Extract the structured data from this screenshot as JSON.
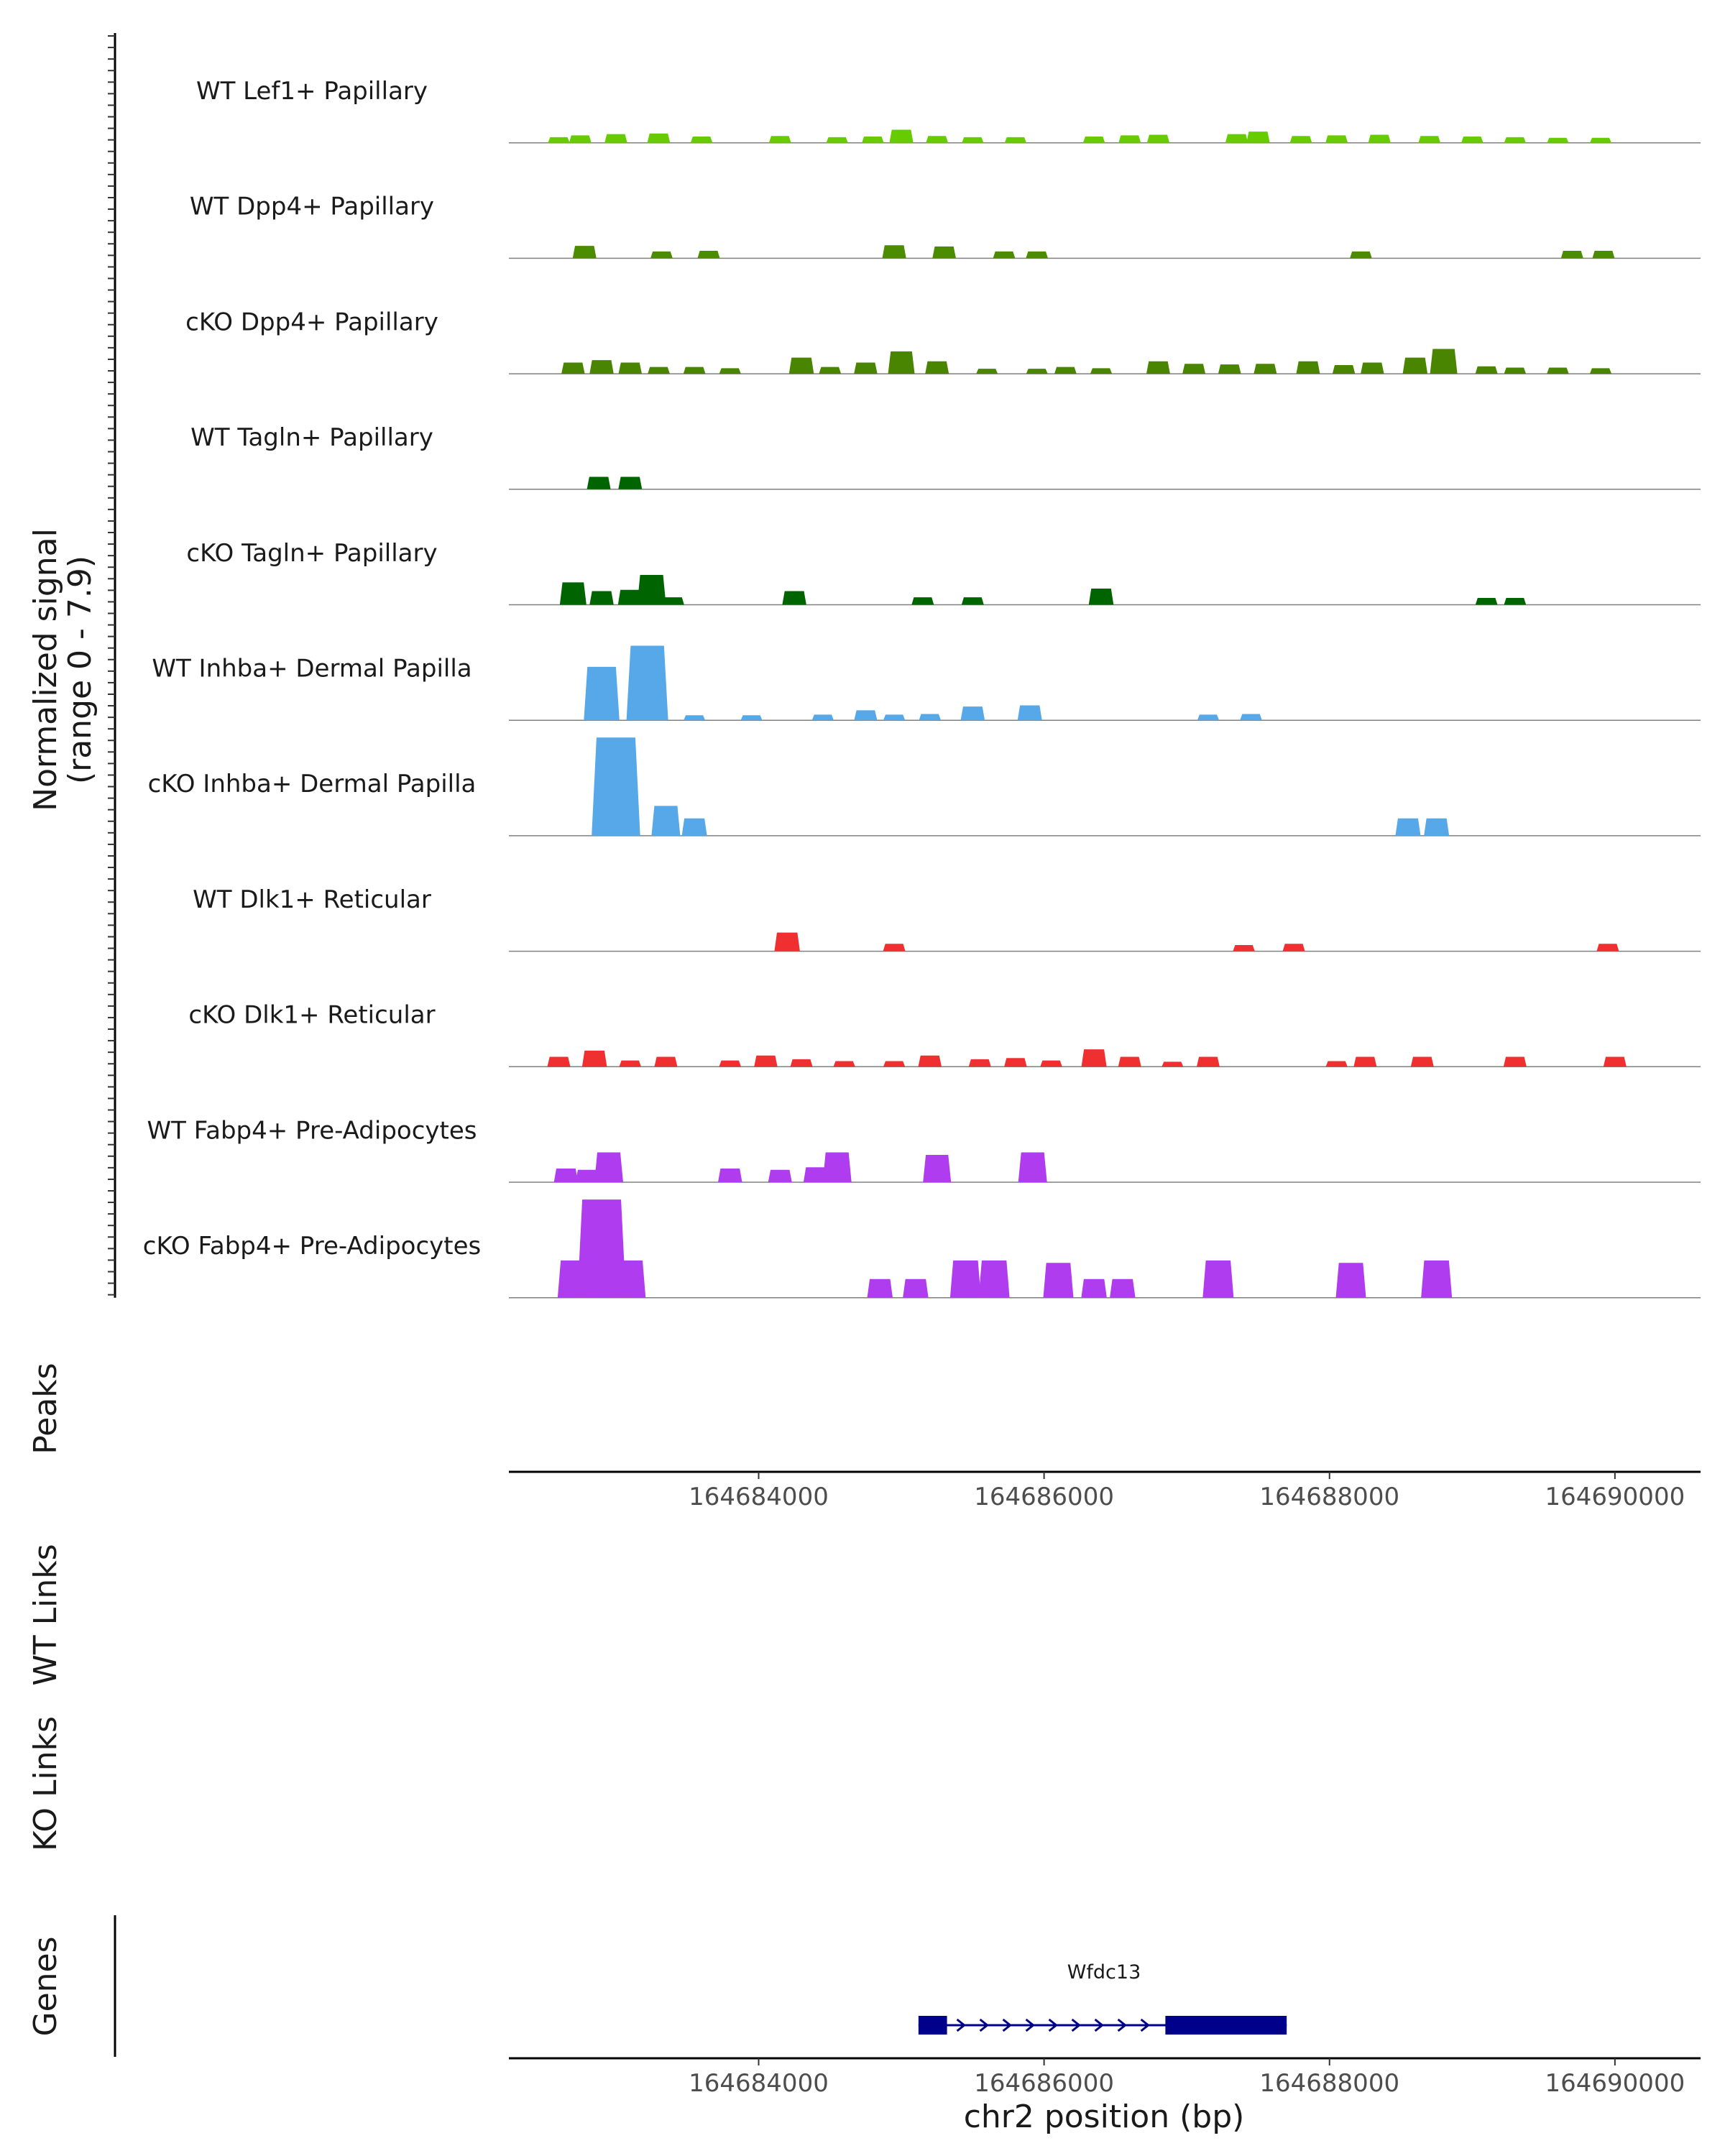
{
  "chart_data": {
    "type": "area",
    "title": "",
    "ylabel": "Normalized signal",
    "ylabel_range": "(range 0 - 7.9)",
    "ylim": [
      0,
      7.9
    ],
    "xlabel": "chr2 position (bp)",
    "xlim": [
      164682250,
      164690600
    ],
    "x_ticks": [
      164684000,
      164686000,
      164688000,
      164690000
    ],
    "x_tick_labels": [
      "164684000",
      "164686000",
      "164688000",
      "164690000"
    ],
    "panel_labels": {
      "peaks": "Peaks",
      "wt_links": "WT Links",
      "ko_links": "KO Links",
      "genes": "Genes"
    },
    "gene": {
      "name": "Wfdc13",
      "strand": "+",
      "start": 164685120,
      "end": 164687700,
      "exons": [
        [
          164685120,
          164685320
        ],
        [
          164686850,
          164687700
        ]
      ]
    },
    "tracks": [
      {
        "name": "WT Lef1+ Papillary",
        "color": "#66cc00",
        "peaks": [
          [
            164682600,
            0.45
          ],
          [
            164682750,
            0.6
          ],
          [
            164683000,
            0.7
          ],
          [
            164683300,
            0.75
          ],
          [
            164683600,
            0.5
          ],
          [
            164684150,
            0.55
          ],
          [
            164684550,
            0.45
          ],
          [
            164684800,
            0.5
          ],
          [
            164685000,
            1.05
          ],
          [
            164685250,
            0.55
          ],
          [
            164685500,
            0.45
          ],
          [
            164685800,
            0.45
          ],
          [
            164686350,
            0.5
          ],
          [
            164686600,
            0.6
          ],
          [
            164686800,
            0.65
          ],
          [
            164687350,
            0.7
          ],
          [
            164687500,
            0.9
          ],
          [
            164687800,
            0.55
          ],
          [
            164688050,
            0.6
          ],
          [
            164688350,
            0.65
          ],
          [
            164688700,
            0.55
          ],
          [
            164689000,
            0.5
          ],
          [
            164689300,
            0.45
          ],
          [
            164689600,
            0.4
          ],
          [
            164689900,
            0.4
          ]
        ]
      },
      {
        "name": "WT Dpp4+ Papillary",
        "color": "#4c8c00",
        "peaks": [
          [
            164682780,
            1.0
          ],
          [
            164683320,
            0.55
          ],
          [
            164683650,
            0.6
          ],
          [
            164684950,
            1.05
          ],
          [
            164685300,
            0.95
          ],
          [
            164685720,
            0.55
          ],
          [
            164685950,
            0.55
          ],
          [
            164688220,
            0.55
          ],
          [
            164689700,
            0.6
          ],
          [
            164689920,
            0.6
          ]
        ]
      },
      {
        "name": "cKO Dpp4+ Papillary",
        "color": "#4a8500",
        "peaks": [
          [
            164682700,
            0.9
          ],
          [
            164682900,
            1.1
          ],
          [
            164683100,
            0.9
          ],
          [
            164683300,
            0.55
          ],
          [
            164683550,
            0.55
          ],
          [
            164683800,
            0.45
          ],
          [
            164684300,
            1.3
          ],
          [
            164684500,
            0.55
          ],
          [
            164684750,
            0.9
          ],
          [
            164685000,
            1.8
          ],
          [
            164685250,
            1.0
          ],
          [
            164685600,
            0.4
          ],
          [
            164685950,
            0.4
          ],
          [
            164686150,
            0.55
          ],
          [
            164686400,
            0.45
          ],
          [
            164686800,
            1.0
          ],
          [
            164687050,
            0.8
          ],
          [
            164687300,
            0.75
          ],
          [
            164687550,
            0.8
          ],
          [
            164687850,
            1.0
          ],
          [
            164688100,
            0.7
          ],
          [
            164688300,
            0.9
          ],
          [
            164688600,
            1.3
          ],
          [
            164688800,
            2.0
          ],
          [
            164689100,
            0.6
          ],
          [
            164689300,
            0.5
          ],
          [
            164689600,
            0.5
          ],
          [
            164689900,
            0.45
          ]
        ]
      },
      {
        "name": "WT Tagln+ Papillary",
        "color": "#006400",
        "peaks": [
          [
            164682880,
            1.0
          ],
          [
            164683100,
            1.0
          ]
        ]
      },
      {
        "name": "cKO Tagln+ Papillary",
        "color": "#006400",
        "peaks": [
          [
            164682700,
            1.8
          ],
          [
            164682900,
            1.1
          ],
          [
            164683100,
            1.2
          ],
          [
            164683250,
            2.4
          ],
          [
            164683400,
            0.6
          ],
          [
            164684250,
            1.1
          ],
          [
            164685150,
            0.6
          ],
          [
            164685500,
            0.6
          ],
          [
            164686400,
            1.3
          ],
          [
            164689100,
            0.55
          ],
          [
            164689300,
            0.55
          ]
        ]
      },
      {
        "name": "WT Inhba+ Dermal Papilla",
        "color": "#56a8e8",
        "peaks": [
          [
            164682900,
            4.3
          ],
          [
            164683220,
            6.0
          ],
          [
            164683550,
            0.4
          ],
          [
            164683950,
            0.4
          ],
          [
            164684450,
            0.45
          ],
          [
            164684750,
            0.8
          ],
          [
            164684950,
            0.45
          ],
          [
            164685200,
            0.5
          ],
          [
            164685500,
            1.1
          ],
          [
            164685900,
            1.2
          ],
          [
            164687150,
            0.45
          ],
          [
            164687450,
            0.5
          ]
        ]
      },
      {
        "name": "cKO Inhba+ Dermal Papilla",
        "color": "#56a8e8",
        "peaks": [
          [
            164683000,
            7.9
          ],
          [
            164683350,
            2.4
          ],
          [
            164683550,
            1.4
          ],
          [
            164688550,
            1.4
          ],
          [
            164688750,
            1.4
          ]
        ]
      },
      {
        "name": "WT Dlk1+ Reticular",
        "color": "#f03030",
        "peaks": [
          [
            164684200,
            1.5
          ],
          [
            164684950,
            0.6
          ],
          [
            164687400,
            0.5
          ],
          [
            164687750,
            0.6
          ],
          [
            164689950,
            0.6
          ]
        ]
      },
      {
        "name": "cKO Dlk1+ Reticular",
        "color": "#f03030",
        "peaks": [
          [
            164682600,
            0.8
          ],
          [
            164682850,
            1.3
          ],
          [
            164683100,
            0.5
          ],
          [
            164683350,
            0.8
          ],
          [
            164683800,
            0.5
          ],
          [
            164684050,
            0.9
          ],
          [
            164684300,
            0.6
          ],
          [
            164684600,
            0.45
          ],
          [
            164684950,
            0.45
          ],
          [
            164685200,
            0.9
          ],
          [
            164685550,
            0.6
          ],
          [
            164685800,
            0.7
          ],
          [
            164686050,
            0.5
          ],
          [
            164686350,
            1.4
          ],
          [
            164686600,
            0.8
          ],
          [
            164686900,
            0.4
          ],
          [
            164687150,
            0.8
          ],
          [
            164688050,
            0.45
          ],
          [
            164688250,
            0.8
          ],
          [
            164688650,
            0.8
          ],
          [
            164689300,
            0.8
          ],
          [
            164690000,
            0.8
          ]
        ]
      },
      {
        "name": "WT Fabp4+ Pre-Adipocytes",
        "color": "#b03cf0",
        "peaks": [
          [
            164682650,
            1.1
          ],
          [
            164682800,
            1.0
          ],
          [
            164682950,
            2.4
          ],
          [
            164683800,
            1.1
          ],
          [
            164684150,
            1.0
          ],
          [
            164684400,
            1.2
          ],
          [
            164684550,
            2.4
          ],
          [
            164685250,
            2.2
          ],
          [
            164685920,
            2.4
          ]
        ]
      },
      {
        "name": "cKO Fabp4+ Pre-Adipocytes",
        "color": "#b03cf0",
        "peaks": [
          [
            164682700,
            3.0
          ],
          [
            164682900,
            7.9
          ],
          [
            164683100,
            3.0
          ],
          [
            164684850,
            1.5
          ],
          [
            164685100,
            1.5
          ],
          [
            164685450,
            3.0
          ],
          [
            164685650,
            3.0
          ],
          [
            164686100,
            2.8
          ],
          [
            164686350,
            1.5
          ],
          [
            164686550,
            1.5
          ],
          [
            164687220,
            3.0
          ],
          [
            164688150,
            2.8
          ],
          [
            164688750,
            3.0
          ]
        ]
      }
    ]
  }
}
